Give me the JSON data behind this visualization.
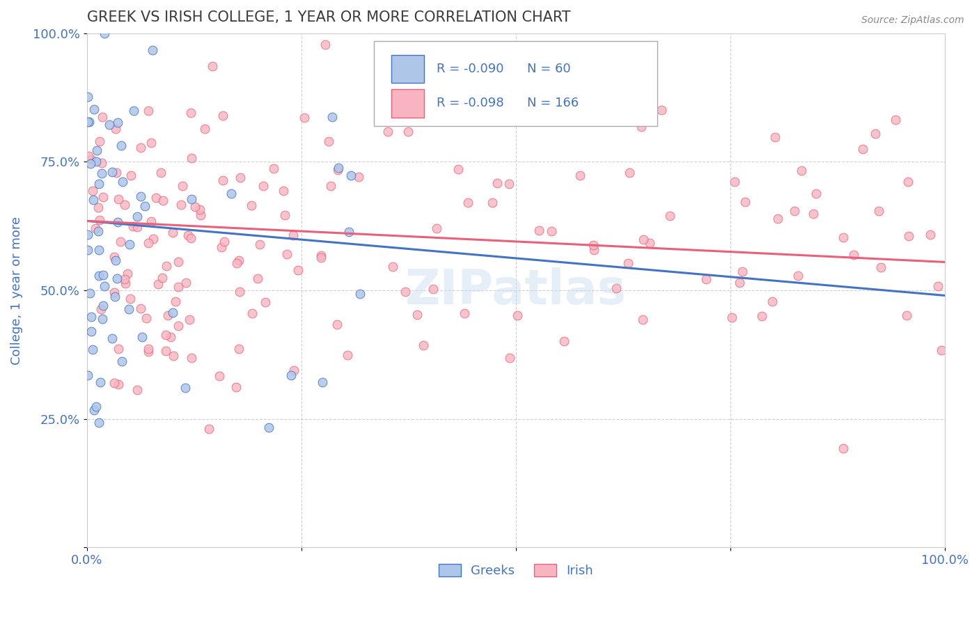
{
  "title": "GREEK VS IRISH COLLEGE, 1 YEAR OR MORE CORRELATION CHART",
  "source": "Source: ZipAtlas.com",
  "ylabel": "College, 1 year or more",
  "xlim": [
    0,
    1
  ],
  "ylim": [
    0,
    1
  ],
  "greek_color": "#aec6e8",
  "irish_color": "#f8b4c0",
  "greek_line_color": "#4472c4",
  "irish_line_color": "#e8607a",
  "greek_R": -0.09,
  "greek_N": 60,
  "irish_R": -0.098,
  "irish_N": 166,
  "legend_label_greek": "Greeks",
  "legend_label_irish": "Irish",
  "title_color": "#3a3a3a",
  "axis_label_color": "#4472c4",
  "tick_label_color": "#4472c4",
  "greek_trend_y0": 0.635,
  "greek_trend_y1": 0.49,
  "irish_trend_y0": 0.635,
  "irish_trend_y1": 0.555
}
